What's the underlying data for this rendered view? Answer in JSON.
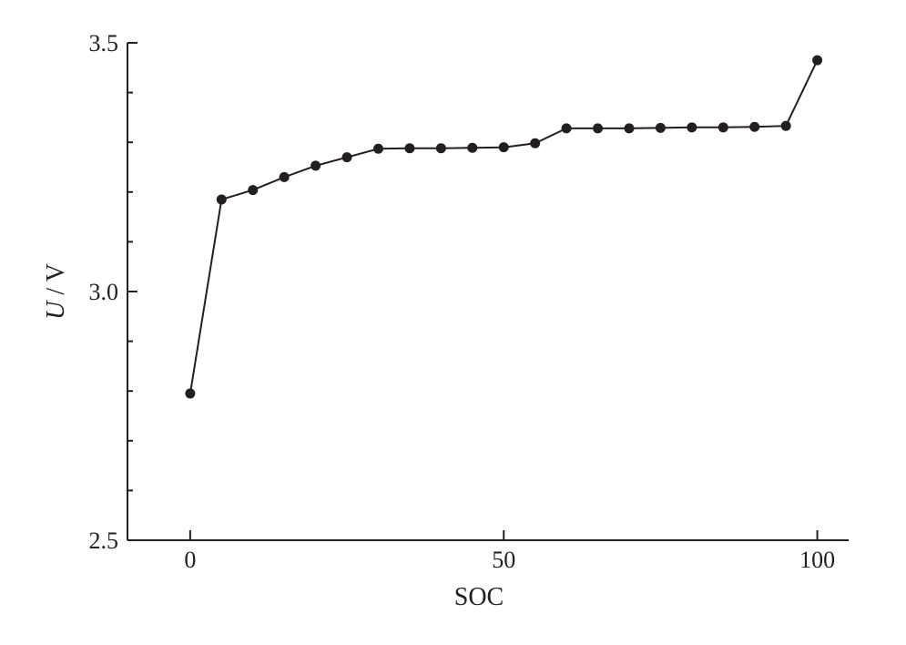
{
  "chart_data": {
    "type": "line",
    "title": "",
    "xlabel": "SOC",
    "ylabel": {
      "var": "U",
      "unit": " / V"
    },
    "xlim": [
      -10,
      105
    ],
    "ylim": [
      2.5,
      3.5
    ],
    "x_ticks": [
      0,
      50,
      100
    ],
    "y_ticks": [
      2.5,
      3.0,
      3.5
    ],
    "y_tick_labels": [
      "2.5",
      "3.0",
      "3.5"
    ],
    "y_minor_step": 0.1,
    "grid": false,
    "legend": "none",
    "series": [
      {
        "x": [
          0,
          5,
          10,
          15,
          20,
          25,
          30,
          35,
          40,
          45,
          50,
          55,
          60,
          65,
          70,
          75,
          80,
          85,
          90,
          95,
          100
        ],
        "y": [
          2.795,
          3.185,
          3.204,
          3.23,
          3.253,
          3.27,
          3.287,
          3.288,
          3.288,
          3.289,
          3.29,
          3.298,
          3.328,
          3.328,
          3.328,
          3.329,
          3.33,
          3.33,
          3.331,
          3.333,
          3.465
        ]
      }
    ],
    "colors": {
      "ink": "#231f20"
    }
  }
}
